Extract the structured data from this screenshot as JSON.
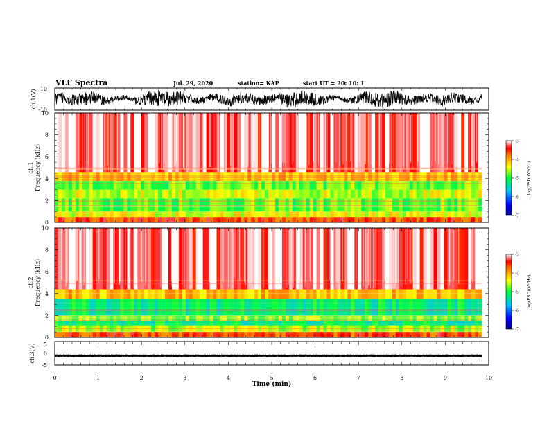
{
  "header": {
    "title": "VLF Spectra",
    "date": "Jul. 29, 2020",
    "station": "station= KAP",
    "start": "start UT =  20: 10: 1"
  },
  "chart_data": [
    {
      "type": "line",
      "panel": "ch1-waveform",
      "ylabel": "ch.1(V)",
      "ylim": [
        -10,
        10
      ],
      "yticks": [
        "10",
        "-10"
      ],
      "xlim": [
        0,
        10
      ],
      "description_values": "noisy waveform, amplitude roughly -8 to 8 V, data up to ~9.8 min"
    },
    {
      "type": "heatmap",
      "panel": "ch1-spectrogram",
      "ylabel": "ch.1\nFrequency (kHz)",
      "ylim": [
        0,
        10
      ],
      "yticks": [
        "0",
        "2",
        "4",
        "6",
        "8",
        "10"
      ],
      "xlim": [
        0,
        10
      ],
      "bands": [
        {
          "from": 0,
          "to": 0.5,
          "level": -3.6
        },
        {
          "from": 0.5,
          "to": 1.0,
          "level": -4.4
        },
        {
          "from": 1.0,
          "to": 2.2,
          "level": -4.8
        },
        {
          "from": 2.2,
          "to": 3.0,
          "level": -4.5
        },
        {
          "from": 3.0,
          "to": 3.8,
          "level": -4.8
        },
        {
          "from": 3.8,
          "to": 4.6,
          "level": -4.1
        },
        {
          "from": 4.6,
          "to": 10,
          "level": -3.2
        }
      ],
      "colorbar": {
        "label": "log(PSD)(V²/Hz)",
        "ticks": [
          "-3",
          "-4",
          "-5",
          "-6",
          "-7"
        ],
        "range": [
          -7,
          -3
        ]
      }
    },
    {
      "type": "heatmap",
      "panel": "ch2-spectrogram",
      "ylabel": "ch.2\nFrequency (kHz)",
      "ylim": [
        0,
        10
      ],
      "yticks": [
        "0",
        "2",
        "4",
        "6",
        "8",
        "10"
      ],
      "xlim": [
        0,
        10
      ],
      "bands": [
        {
          "from": 0,
          "to": 0.5,
          "level": -3.6
        },
        {
          "from": 0.5,
          "to": 1.1,
          "level": -4.6
        },
        {
          "from": 1.1,
          "to": 1.5,
          "level": -5.2
        },
        {
          "from": 1.5,
          "to": 2.0,
          "level": -4.7
        },
        {
          "from": 2.0,
          "to": 3.5,
          "level": -5.2
        },
        {
          "from": 3.5,
          "to": 4.4,
          "level": -4.1
        },
        {
          "from": 4.4,
          "to": 10,
          "level": -3.2
        }
      ],
      "colorbar": {
        "label": "log(PSD)(V²/Hz)",
        "ticks": [
          "-3",
          "-4",
          "-5",
          "-6",
          "-7"
        ],
        "range": [
          -7,
          -3
        ]
      }
    },
    {
      "type": "line",
      "panel": "ch3-waveform",
      "ylabel": "ch.3(V)",
      "ylim": [
        -5,
        5
      ],
      "yticks": [
        "5",
        "0",
        "-5"
      ],
      "xlim": [
        0,
        10
      ],
      "xlabel": "Time (min)",
      "xticks": [
        "0",
        "1",
        "2",
        "3",
        "4",
        "5",
        "6",
        "7",
        "8",
        "9",
        "10"
      ],
      "description_values": "constant level near -1 V with small ripple"
    }
  ]
}
